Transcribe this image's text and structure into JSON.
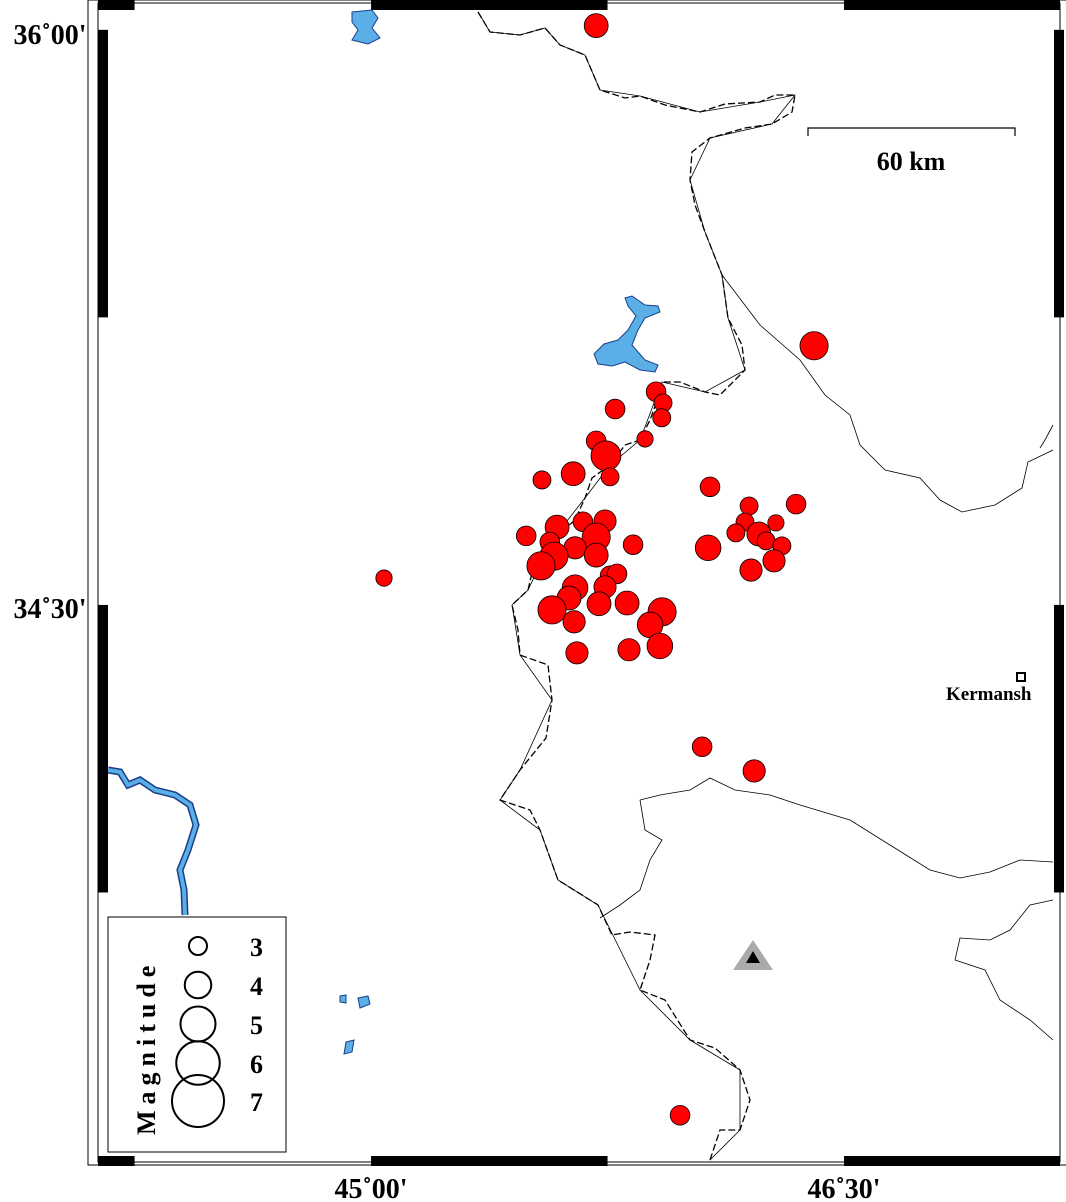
{
  "map": {
    "extent": {
      "lon": [
        44.134,
        47.185
      ],
      "lat": [
        33.047,
        36.07
      ]
    },
    "axis_labels": {
      "lon": [
        {
          "value": 45.0,
          "text": "45˚00'"
        },
        {
          "value": 46.5,
          "text": "46˚30'"
        }
      ],
      "lat": [
        {
          "value": 36.0,
          "text": "36˚00'"
        },
        {
          "value": 34.5,
          "text": "34˚30'"
        }
      ]
    },
    "frame_tick_interval_deg": 0.75,
    "scale_bar": {
      "label": "60 km",
      "length_km": 60
    },
    "city": {
      "name": "Kermanshah",
      "shown_text": "Kermansh",
      "lon": 47.14,
      "lat": 34.31
    },
    "station": {
      "symbol": "triangle",
      "lon": 46.21,
      "lat": 33.86
    },
    "colors": {
      "event_fill": "#ff0000",
      "water": "#5aafe6",
      "station_outer": "#aaaaaa",
      "station_inner": "#000000"
    }
  },
  "legend": {
    "title": "Magnitude",
    "entries": [
      {
        "mag": 3,
        "label": "3"
      },
      {
        "mag": 4,
        "label": "4"
      },
      {
        "mag": 5,
        "label": "5"
      },
      {
        "mag": 6,
        "label": "6"
      },
      {
        "mag": 7,
        "label": "7"
      }
    ]
  },
  "events": [
    {
      "lon": 45.714,
      "lat": 36.011,
      "mag": 3.7
    },
    {
      "lon": 46.405,
      "lat": 35.176,
      "mag": 4.2
    },
    {
      "lon": 45.041,
      "lat": 34.57,
      "mag": 2.8
    },
    {
      "lon": 45.904,
      "lat": 35.056,
      "mag": 3.2
    },
    {
      "lon": 45.926,
      "lat": 35.027,
      "mag": 3.0
    },
    {
      "lon": 45.922,
      "lat": 34.988,
      "mag": 3.0
    },
    {
      "lon": 45.774,
      "lat": 35.011,
      "mag": 3.2
    },
    {
      "lon": 45.869,
      "lat": 34.933,
      "mag": 2.8
    },
    {
      "lon": 45.714,
      "lat": 34.928,
      "mag": 3.2
    },
    {
      "lon": 45.745,
      "lat": 34.889,
      "mag": 4.4
    },
    {
      "lon": 45.641,
      "lat": 34.842,
      "mag": 3.7
    },
    {
      "lon": 45.542,
      "lat": 34.826,
      "mag": 3.0
    },
    {
      "lon": 45.758,
      "lat": 34.834,
      "mag": 3.0
    },
    {
      "lon": 46.075,
      "lat": 34.808,
      "mag": 3.2
    },
    {
      "lon": 46.199,
      "lat": 34.758,
      "mag": 3.0
    },
    {
      "lon": 46.348,
      "lat": 34.763,
      "mag": 3.2
    },
    {
      "lon": 46.186,
      "lat": 34.716,
      "mag": 3.0
    },
    {
      "lon": 46.284,
      "lat": 34.714,
      "mag": 2.8
    },
    {
      "lon": 46.157,
      "lat": 34.688,
      "mag": 3.0
    },
    {
      "lon": 46.23,
      "lat": 34.685,
      "mag": 3.7
    },
    {
      "lon": 46.253,
      "lat": 34.667,
      "mag": 3.0
    },
    {
      "lon": 46.303,
      "lat": 34.654,
      "mag": 3.0
    },
    {
      "lon": 46.069,
      "lat": 34.649,
      "mag": 3.9
    },
    {
      "lon": 46.278,
      "lat": 34.615,
      "mag": 3.5
    },
    {
      "lon": 46.205,
      "lat": 34.591,
      "mag": 3.5
    },
    {
      "lon": 45.492,
      "lat": 34.68,
      "mag": 3.2
    },
    {
      "lon": 45.59,
      "lat": 34.703,
      "mag": 3.7
    },
    {
      "lon": 45.672,
      "lat": 34.717,
      "mag": 3.2
    },
    {
      "lon": 45.742,
      "lat": 34.719,
      "mag": 3.5
    },
    {
      "lon": 45.714,
      "lat": 34.677,
      "mag": 4.2
    },
    {
      "lon": 45.831,
      "lat": 34.657,
      "mag": 3.2
    },
    {
      "lon": 45.567,
      "lat": 34.664,
      "mag": 3.2
    },
    {
      "lon": 45.647,
      "lat": 34.649,
      "mag": 3.5
    },
    {
      "lon": 45.58,
      "lat": 34.627,
      "mag": 4.2
    },
    {
      "lon": 45.539,
      "lat": 34.602,
      "mag": 4.2
    },
    {
      "lon": 45.714,
      "lat": 34.63,
      "mag": 3.7
    },
    {
      "lon": 45.758,
      "lat": 34.576,
      "mag": 3.2
    },
    {
      "lon": 45.78,
      "lat": 34.581,
      "mag": 3.2
    },
    {
      "lon": 45.647,
      "lat": 34.545,
      "mag": 3.9
    },
    {
      "lon": 45.742,
      "lat": 34.547,
      "mag": 3.5
    },
    {
      "lon": 45.628,
      "lat": 34.518,
      "mag": 3.7
    },
    {
      "lon": 45.723,
      "lat": 34.503,
      "mag": 3.7
    },
    {
      "lon": 45.574,
      "lat": 34.487,
      "mag": 4.2
    },
    {
      "lon": 45.644,
      "lat": 34.456,
      "mag": 3.5
    },
    {
      "lon": 45.812,
      "lat": 34.505,
      "mag": 3.7
    },
    {
      "lon": 45.923,
      "lat": 34.482,
      "mag": 4.2
    },
    {
      "lon": 45.885,
      "lat": 34.448,
      "mag": 3.9
    },
    {
      "lon": 45.916,
      "lat": 34.393,
      "mag": 3.9
    },
    {
      "lon": 45.818,
      "lat": 34.383,
      "mag": 3.5
    },
    {
      "lon": 45.653,
      "lat": 34.375,
      "mag": 3.5
    },
    {
      "lon": 46.05,
      "lat": 34.13,
      "mag": 3.2
    },
    {
      "lon": 46.215,
      "lat": 34.067,
      "mag": 3.5
    },
    {
      "lon": 45.98,
      "lat": 33.169,
      "mag": 3.2
    }
  ]
}
